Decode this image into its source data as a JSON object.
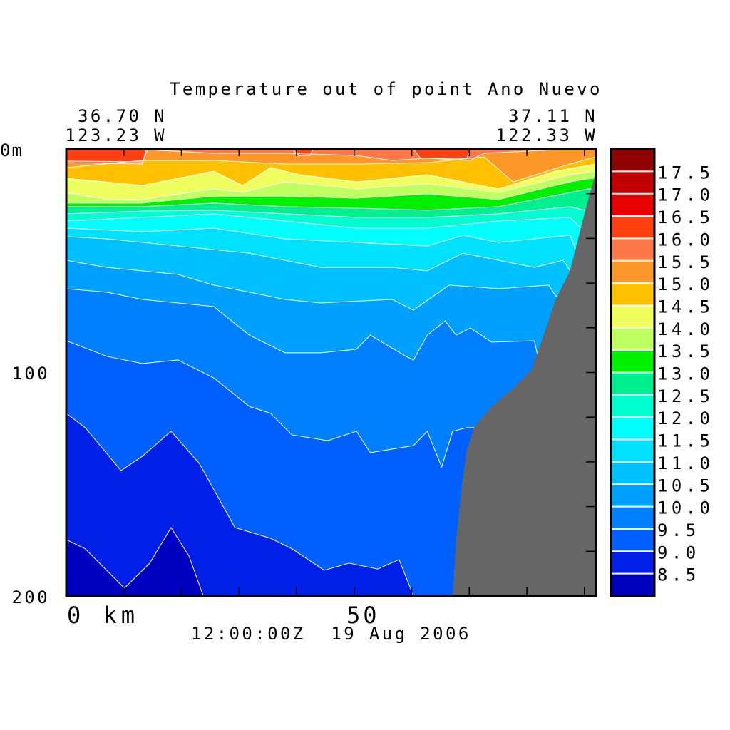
{
  "chart_data": {
    "type": "heatmap",
    "subtype": "filled-contour-section",
    "title": "Temperature out of point Ano Nuevo",
    "start_location": {
      "lat": "36.70 N",
      "lon": "123.23 W"
    },
    "end_location": {
      "lat": "37.11 N",
      "lon": "122.33 W"
    },
    "timestamp": "12:00:00Z  19 Aug 2006",
    "xlabel": "km",
    "ylabel": "m",
    "xlim": [
      0,
      92
    ],
    "ylim": [
      0,
      200
    ],
    "y_tick_labels": [
      "0m",
      "100",
      "200"
    ],
    "x_tick_labels": [
      "0 km",
      "50"
    ],
    "x_tick_step": 10,
    "y_tick_step": 20,
    "colorbar": {
      "levels": [
        8.5,
        9.0,
        9.5,
        10.0,
        10.5,
        11.0,
        11.5,
        12.0,
        12.5,
        13.0,
        13.5,
        14.0,
        14.5,
        15.0,
        15.5,
        16.0,
        16.5,
        17.0,
        17.5
      ],
      "labels": [
        "8.5",
        "9.0",
        "9.5",
        "10.0",
        "10.5",
        "11.0",
        "11.5",
        "12.0",
        "12.5",
        "13.0",
        "13.5",
        "14.0",
        "14.5",
        "15.0",
        "15.5",
        "16.0",
        "16.5",
        "17.0",
        "17.5"
      ],
      "colors": [
        "#0000c0",
        "#0020e8",
        "#0060ff",
        "#0080ff",
        "#00a0ff",
        "#00c0ff",
        "#00e0ff",
        "#00ffff",
        "#00ffd0",
        "#00f090",
        "#00f000",
        "#c0ff60",
        "#f0ff60",
        "#ffc000",
        "#ff9828",
        "#ff7848",
        "#ff4010",
        "#e80000",
        "#c00000",
        "#900000"
      ]
    },
    "isotherms": [
      {
        "level": 8.5,
        "points": [
          [
            0,
            174.8
          ],
          [
            3.3,
            178.9
          ],
          [
            10.1,
            196.5
          ],
          [
            14.5,
            185.3
          ],
          [
            18.2,
            169.4
          ],
          [
            21.3,
            182.1
          ],
          [
            23.8,
            200
          ],
          [
            24.5,
            205
          ],
          [
            92,
            205
          ]
        ]
      },
      {
        "level": 9.0,
        "points": [
          [
            0,
            118.3
          ],
          [
            3.3,
            124.7
          ],
          [
            9.5,
            143.9
          ],
          [
            13.2,
            137.5
          ],
          [
            18.2,
            126.3
          ],
          [
            23.1,
            140.7
          ],
          [
            29.3,
            169.4
          ],
          [
            35.5,
            174.2
          ],
          [
            39.2,
            178.9
          ],
          [
            44.8,
            188.5
          ],
          [
            49.1,
            185.3
          ],
          [
            54.1,
            187.9
          ],
          [
            57.8,
            183.7
          ],
          [
            60.3,
            200
          ],
          [
            61,
            205
          ],
          [
            92,
            205
          ]
        ]
      },
      {
        "level": 9.5,
        "points": [
          [
            0,
            85.8
          ],
          [
            7.1,
            92.8
          ],
          [
            13.2,
            96
          ],
          [
            19.4,
            94.4
          ],
          [
            25.6,
            102.4
          ],
          [
            31.8,
            115.2
          ],
          [
            35.5,
            118.3
          ],
          [
            39.2,
            127.9
          ],
          [
            45.4,
            130.5
          ],
          [
            50.4,
            126.3
          ],
          [
            52.8,
            135.9
          ],
          [
            60.3,
            132.7
          ],
          [
            62.7,
            126.3
          ],
          [
            65.2,
            142.3
          ],
          [
            67.1,
            126.3
          ],
          [
            69.6,
            124.7
          ],
          [
            92,
            124.7
          ]
        ]
      },
      {
        "level": 10.0,
        "points": [
          [
            0,
            62.5
          ],
          [
            7.1,
            64.1
          ],
          [
            13.2,
            67.3
          ],
          [
            25.6,
            70.5
          ],
          [
            31.8,
            83.3
          ],
          [
            38,
            91.2
          ],
          [
            44.2,
            91.2
          ],
          [
            50.4,
            89.6
          ],
          [
            52.8,
            83.3
          ],
          [
            59,
            92.8
          ],
          [
            60.3,
            94.4
          ],
          [
            62.7,
            83.3
          ],
          [
            65.8,
            76.9
          ],
          [
            67.7,
            83.3
          ],
          [
            70.2,
            80.1
          ],
          [
            73.9,
            86.4
          ],
          [
            81.3,
            85.8
          ],
          [
            81.9,
            92.8
          ],
          [
            92,
            92.8
          ]
        ]
      },
      {
        "level": 10.5,
        "points": [
          [
            0,
            49.8
          ],
          [
            7.1,
            53
          ],
          [
            19.4,
            56.1
          ],
          [
            25.6,
            60.9
          ],
          [
            38,
            67.3
          ],
          [
            44.2,
            68.9
          ],
          [
            56.6,
            67.3
          ],
          [
            60.3,
            72.1
          ],
          [
            66.5,
            60.9
          ],
          [
            75.1,
            62.5
          ],
          [
            83.8,
            60.9
          ],
          [
            85,
            65.7
          ],
          [
            92,
            65.7
          ]
        ]
      },
      {
        "level": 11.0,
        "points": [
          [
            0,
            39.2
          ],
          [
            7.1,
            40.2
          ],
          [
            19.4,
            43.4
          ],
          [
            31.8,
            46.6
          ],
          [
            44.2,
            53
          ],
          [
            56.6,
            53
          ],
          [
            62.7,
            54.5
          ],
          [
            68.9,
            46.6
          ],
          [
            75.1,
            49.8
          ],
          [
            81.3,
            53
          ],
          [
            86.3,
            49.8
          ],
          [
            87.5,
            54.5
          ],
          [
            92,
            54.5
          ]
        ]
      },
      {
        "level": 11.5,
        "points": [
          [
            0,
            35.4
          ],
          [
            13.2,
            37
          ],
          [
            25.6,
            35.4
          ],
          [
            38,
            40.2
          ],
          [
            50.4,
            41.8
          ],
          [
            62.7,
            43.4
          ],
          [
            68.9,
            38.6
          ],
          [
            75.1,
            41.8
          ],
          [
            87.5,
            38.6
          ],
          [
            88.5,
            45
          ],
          [
            92,
            45
          ]
        ]
      },
      {
        "level": 12.0,
        "points": [
          [
            0,
            32.2
          ],
          [
            13.2,
            30.6
          ],
          [
            25.6,
            29
          ],
          [
            38,
            32.2
          ],
          [
            50.4,
            35.4
          ],
          [
            62.7,
            35.4
          ],
          [
            75.1,
            32.2
          ],
          [
            87.5,
            30.6
          ],
          [
            89.4,
            35.4
          ],
          [
            92,
            35.4
          ]
        ]
      },
      {
        "level": 12.5,
        "points": [
          [
            0,
            29
          ],
          [
            13.2,
            27.8
          ],
          [
            25.6,
            27.4
          ],
          [
            38,
            29
          ],
          [
            50.4,
            30.6
          ],
          [
            62.7,
            30.6
          ],
          [
            75.1,
            29
          ],
          [
            87.5,
            25.8
          ],
          [
            90,
            27.4
          ],
          [
            92,
            27.4
          ]
        ]
      },
      {
        "level": 13.0,
        "points": [
          [
            0,
            25.8
          ],
          [
            13.2,
            25.8
          ],
          [
            25.6,
            24.2
          ],
          [
            38,
            25.8
          ],
          [
            50.4,
            26.5
          ],
          [
            62.7,
            27.4
          ],
          [
            75.1,
            25.8
          ],
          [
            87.5,
            19.5
          ],
          [
            90.6,
            17.9
          ],
          [
            92,
            17.9
          ]
        ]
      },
      {
        "level": 13.5,
        "points": [
          [
            0,
            24.2
          ],
          [
            13.2,
            24.2
          ],
          [
            25.6,
            21.1
          ],
          [
            38,
            21.1
          ],
          [
            50.4,
            22
          ],
          [
            62.7,
            20.1
          ],
          [
            75.1,
            22.6
          ],
          [
            87.5,
            14.7
          ],
          [
            91.2,
            13.1
          ],
          [
            92,
            13.1
          ]
        ]
      },
      {
        "level": 14.0,
        "points": [
          [
            0,
            19.5
          ],
          [
            7.1,
            22.6
          ],
          [
            13.2,
            22.6
          ],
          [
            25.6,
            17.9
          ],
          [
            30.6,
            19.5
          ],
          [
            38,
            14.7
          ],
          [
            50.4,
            17.9
          ],
          [
            62.7,
            15.6
          ],
          [
            75.1,
            19.5
          ],
          [
            87.5,
            11.5
          ],
          [
            92,
            9.9
          ]
        ]
      },
      {
        "level": 14.5,
        "points": [
          [
            0,
            13.1
          ],
          [
            13.2,
            16.3
          ],
          [
            25.6,
            9.9
          ],
          [
            30.6,
            16.3
          ],
          [
            35.5,
            8.3
          ],
          [
            40.5,
            11.5
          ],
          [
            50.4,
            14.7
          ],
          [
            62.7,
            11.5
          ],
          [
            75.1,
            17.9
          ],
          [
            85,
            9.9
          ],
          [
            92,
            6.7
          ]
        ]
      },
      {
        "level": 15.0,
        "points": [
          [
            0,
            8.3
          ],
          [
            13.2,
            5.1
          ],
          [
            25.6,
            5.1
          ],
          [
            38,
            6.7
          ],
          [
            50.4,
            6.7
          ],
          [
            62.7,
            6.1
          ],
          [
            72.6,
            3.5
          ],
          [
            77.6,
            14.7
          ],
          [
            87.5,
            6.7
          ],
          [
            92,
            3.5
          ]
        ]
      },
      {
        "level": 15.5,
        "points": [
          [
            0,
            6.1
          ],
          [
            13.2,
            6.7
          ],
          [
            13.9,
            0.3
          ],
          [
            25.6,
            1.9
          ],
          [
            38,
            1.9
          ],
          [
            50.4,
            2.9
          ],
          [
            56.6,
            5.1
          ],
          [
            62.7,
            4.1
          ],
          [
            70.2,
            5.1
          ],
          [
            72.6,
            1.9
          ],
          [
            87.5,
            0
          ],
          [
            92,
            0
          ]
        ]
      },
      {
        "level": 16.0,
        "points": [
          [
            0,
            5.4
          ],
          [
            13.2,
            5.7
          ],
          [
            14.2,
            0
          ],
          [
            39.2,
            0
          ],
          [
            40.5,
            2.9
          ],
          [
            42.3,
            2.9
          ],
          [
            42.9,
            0
          ],
          [
            60.3,
            0
          ],
          [
            61.5,
            4.1
          ],
          [
            69.6,
            4.1
          ],
          [
            70.2,
            0
          ],
          [
            92,
            0
          ]
        ]
      }
    ],
    "terrain": {
      "color": "#666666",
      "points": [
        [
          92,
          9.9
        ],
        [
          90,
          29
        ],
        [
          87.5,
          54.5
        ],
        [
          85,
          67.3
        ],
        [
          82.5,
          86.4
        ],
        [
          80.7,
          99.2
        ],
        [
          77.6,
          107.2
        ],
        [
          73.9,
          115.2
        ],
        [
          70.8,
          124.7
        ],
        [
          69.6,
          134.3
        ],
        [
          68.7,
          150.2
        ],
        [
          67.7,
          175.8
        ],
        [
          67.1,
          200
        ],
        [
          92,
          200
        ]
      ]
    }
  }
}
